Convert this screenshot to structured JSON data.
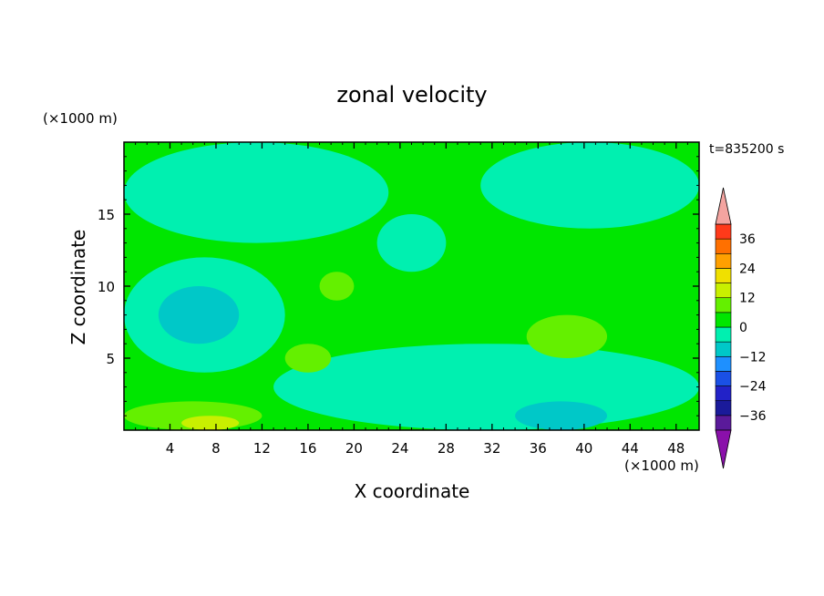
{
  "chart_data": {
    "type": "heatmap",
    "title": "zonal velocity",
    "xlabel": "X coordinate",
    "ylabel": "Z coordinate",
    "x_unit": "(×1000 m)",
    "y_unit": "(×1000 m)",
    "time_label": "t=835200 s",
    "xlim": [
      0,
      50
    ],
    "ylim": [
      0,
      20
    ],
    "x_ticks": [
      4,
      8,
      12,
      16,
      20,
      24,
      28,
      32,
      36,
      40,
      44,
      48
    ],
    "y_ticks": [
      5,
      10,
      15
    ],
    "colorbar": {
      "levels": [
        -42,
        -36,
        -30,
        -24,
        -18,
        -12,
        -6,
        0,
        6,
        12,
        18,
        24,
        30,
        36,
        42
      ],
      "tick_values": [
        -36,
        -24,
        -12,
        0,
        12,
        24,
        36
      ],
      "tick_labels": [
        "−36",
        "−24",
        "−12",
        "0",
        "12",
        "24",
        "36"
      ],
      "colors": [
        "#5a1a9a",
        "#1a1a9a",
        "#2222c8",
        "#1a50e6",
        "#1e90ff",
        "#00c8c8",
        "#00f0b0",
        "#00e600",
        "#64f000",
        "#c8f000",
        "#f0e000",
        "#ffa000",
        "#ff7000",
        "#ff3a1a"
      ],
      "under_color": "#8a10aa",
      "over_color": "#f4a4a0"
    },
    "field_regions": [
      {
        "level": 0,
        "description": "background band 0 to 6"
      },
      {
        "level": -6,
        "area": "upper-right",
        "x": [
          31,
          50
        ],
        "y": [
          14,
          20
        ]
      },
      {
        "level": -6,
        "area": "upper-left",
        "x": [
          0,
          23
        ],
        "y": [
          13,
          20
        ]
      },
      {
        "level": -6,
        "area": "upper-center",
        "x": [
          22,
          28
        ],
        "y": [
          11,
          15
        ]
      },
      {
        "level": -6,
        "area": "left-middle",
        "x": [
          0,
          14
        ],
        "y": [
          4,
          12
        ]
      },
      {
        "level": -12,
        "area": "left-middle core",
        "x": [
          3,
          10
        ],
        "y": [
          6,
          10
        ]
      },
      {
        "level": -6,
        "area": "lower-center",
        "x": [
          13,
          50
        ],
        "y": [
          0,
          6
        ]
      },
      {
        "level": -12,
        "area": "bottom-right patch",
        "x": [
          34,
          42
        ],
        "y": [
          0,
          2
        ]
      },
      {
        "level": 6,
        "area": "bottom-left",
        "x": [
          0,
          12
        ],
        "y": [
          0,
          2
        ]
      },
      {
        "level": 12,
        "area": "bottom-left core",
        "x": [
          5,
          10
        ],
        "y": [
          0,
          1
        ]
      },
      {
        "level": 6,
        "area": "right-middle",
        "x": [
          35,
          42
        ],
        "y": [
          5,
          8
        ]
      },
      {
        "level": 6,
        "area": "center-left",
        "x": [
          14,
          18
        ],
        "y": [
          4,
          6
        ]
      },
      {
        "level": 6,
        "area": "center",
        "x": [
          17,
          20
        ],
        "y": [
          9,
          11
        ]
      }
    ]
  }
}
